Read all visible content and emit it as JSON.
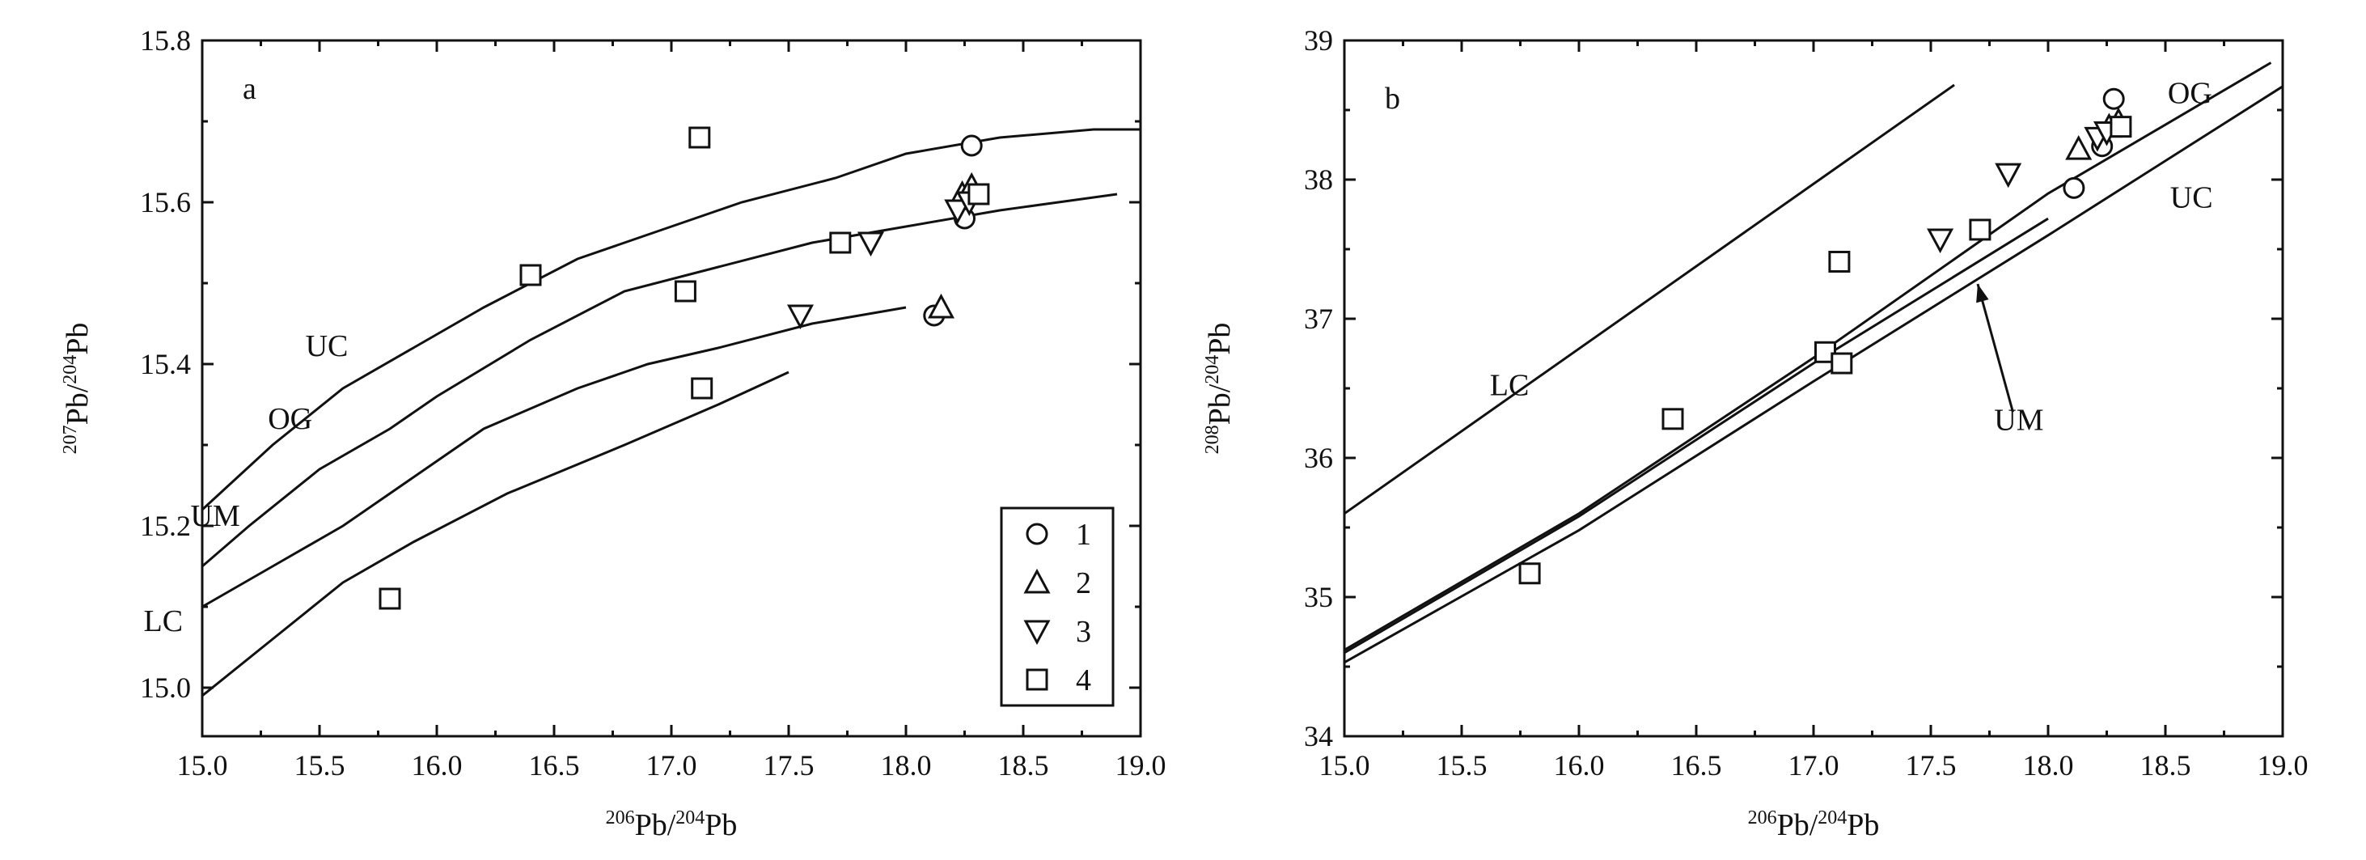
{
  "chart_data": [
    {
      "type": "line",
      "panel_label": "a",
      "xlabel": "206Pb/204Pb",
      "ylabel": "207Pb/204Pb",
      "xlim": [
        15.0,
        19.0
      ],
      "ylim": [
        14.94,
        15.8
      ],
      "x_ticks": [
        15.0,
        15.5,
        16.0,
        16.5,
        17.0,
        17.5,
        18.0,
        18.5,
        19.0
      ],
      "x_tick_labels": [
        "15.0",
        "15.5",
        "16.0",
        "16.5",
        "17.0",
        "17.5",
        "18.0",
        "18.5",
        "19.0"
      ],
      "y_ticks": [
        15.0,
        15.2,
        15.4,
        15.6,
        15.8
      ],
      "y_tick_labels": [
        "15.0",
        "15.2",
        "15.4",
        "15.6",
        "15.8"
      ],
      "curves": [
        {
          "label": "UC",
          "label_at": [
            15.44,
            15.41
          ],
          "x": [
            15.0,
            15.3,
            15.6,
            15.9,
            16.2,
            16.6,
            17.0,
            17.3,
            17.7,
            18.0,
            18.4,
            18.8,
            19.0
          ],
          "y": [
            15.22,
            15.3,
            15.37,
            15.42,
            15.47,
            15.53,
            15.57,
            15.6,
            15.63,
            15.66,
            15.68,
            15.69,
            15.69
          ]
        },
        {
          "label": "OG",
          "label_at": [
            15.28,
            15.32
          ],
          "x": [
            15.0,
            15.2,
            15.5,
            15.8,
            16.0,
            16.4,
            16.8,
            17.2,
            17.6,
            18.0,
            18.4,
            18.9
          ],
          "y": [
            15.15,
            15.2,
            15.27,
            15.32,
            15.36,
            15.43,
            15.49,
            15.52,
            15.55,
            15.57,
            15.59,
            15.61
          ]
        },
        {
          "label": "UM",
          "label_at": [
            14.95,
            15.2
          ],
          "x": [
            15.0,
            15.3,
            15.6,
            15.9,
            16.2,
            16.6,
            16.9,
            17.2,
            17.6,
            18.0
          ],
          "y": [
            15.1,
            15.15,
            15.2,
            15.26,
            15.32,
            15.37,
            15.4,
            15.42,
            15.45,
            15.47
          ]
        },
        {
          "label": "LC",
          "label_at": [
            14.75,
            15.07
          ],
          "x": [
            15.0,
            15.3,
            15.6,
            15.9,
            16.3,
            16.8,
            17.2,
            17.5
          ],
          "y": [
            14.99,
            15.06,
            15.13,
            15.18,
            15.24,
            15.3,
            15.35,
            15.39
          ]
        }
      ],
      "series": [
        {
          "name": "1",
          "marker": "circle",
          "x": [
            18.28,
            18.12,
            18.25
          ],
          "y": [
            15.67,
            15.46,
            15.58
          ]
        },
        {
          "name": "2",
          "marker": "triangle-up",
          "x": [
            18.15,
            18.24,
            18.28
          ],
          "y": [
            15.47,
            15.61,
            15.62
          ]
        },
        {
          "name": "3",
          "marker": "triangle-down",
          "x": [
            17.55,
            17.85,
            18.22,
            18.27
          ],
          "y": [
            15.46,
            15.55,
            15.59,
            15.6
          ]
        },
        {
          "name": "4",
          "marker": "square",
          "x": [
            17.12,
            16.4,
            17.06,
            17.72,
            18.31,
            17.13,
            15.8
          ],
          "y": [
            15.68,
            15.51,
            15.49,
            15.55,
            15.61,
            15.37,
            15.11
          ]
        }
      ],
      "legend": {
        "placement": "bottom-right",
        "entries": [
          "1",
          "2",
          "3",
          "4"
        ]
      }
    },
    {
      "type": "line",
      "panel_label": "b",
      "xlabel": "206Pb/204Pb",
      "ylabel": "208Pb/204Pb",
      "xlim": [
        15.0,
        19.0
      ],
      "ylim": [
        34,
        39
      ],
      "x_ticks": [
        15.0,
        15.5,
        16.0,
        16.5,
        17.0,
        17.5,
        18.0,
        18.5,
        19.0
      ],
      "x_tick_labels": [
        "15.0",
        "15.5",
        "16.0",
        "16.5",
        "17.0",
        "17.5",
        "18.0",
        "18.5",
        "19.0"
      ],
      "y_ticks": [
        34,
        35,
        36,
        37,
        38,
        39
      ],
      "y_tick_labels": [
        "34",
        "35",
        "36",
        "37",
        "38",
        "39"
      ],
      "curves": [
        {
          "label": "LC",
          "label_at": [
            15.62,
            36.45
          ],
          "x": [
            15.0,
            17.6
          ],
          "y": [
            35.6,
            38.68
          ]
        },
        {
          "label": "OG",
          "label_at": [
            18.51,
            38.55
          ],
          "x": [
            15.0,
            16.0,
            17.0,
            18.0,
            18.95
          ],
          "y": [
            34.62,
            35.6,
            36.72,
            37.9,
            38.84
          ]
        },
        {
          "label": "UM",
          "label_at": [
            17.77,
            36.2
          ],
          "x": [
            15.0,
            16.0,
            17.0,
            18.0
          ],
          "y": [
            34.6,
            35.58,
            36.68,
            37.72
          ]
        },
        {
          "label": "UC",
          "label_at": [
            18.52,
            37.8
          ],
          "x": [
            15.0,
            16.0,
            17.0,
            18.0,
            19.0
          ],
          "y": [
            34.53,
            35.48,
            36.55,
            37.6,
            38.67
          ]
        }
      ],
      "um_arrow": {
        "from": [
          17.85,
          36.33
        ],
        "to": [
          17.7,
          37.25
        ]
      },
      "series": [
        {
          "name": "1",
          "marker": "circle",
          "x": [
            18.28,
            18.23,
            18.11
          ],
          "y": [
            38.58,
            38.24,
            37.94
          ]
        },
        {
          "name": "2",
          "marker": "triangle-up",
          "x": [
            18.13,
            18.26,
            18.3
          ],
          "y": [
            38.22,
            38.38,
            38.42
          ]
        },
        {
          "name": "3",
          "marker": "triangle-down",
          "x": [
            17.54,
            17.83,
            18.21,
            18.25
          ],
          "y": [
            37.57,
            38.04,
            38.3,
            38.34
          ]
        },
        {
          "name": "4",
          "marker": "square",
          "x": [
            15.79,
            16.4,
            17.05,
            17.12,
            17.11,
            17.71,
            18.31
          ],
          "y": [
            35.17,
            36.28,
            36.76,
            36.68,
            37.41,
            37.64,
            38.38
          ]
        }
      ]
    }
  ]
}
